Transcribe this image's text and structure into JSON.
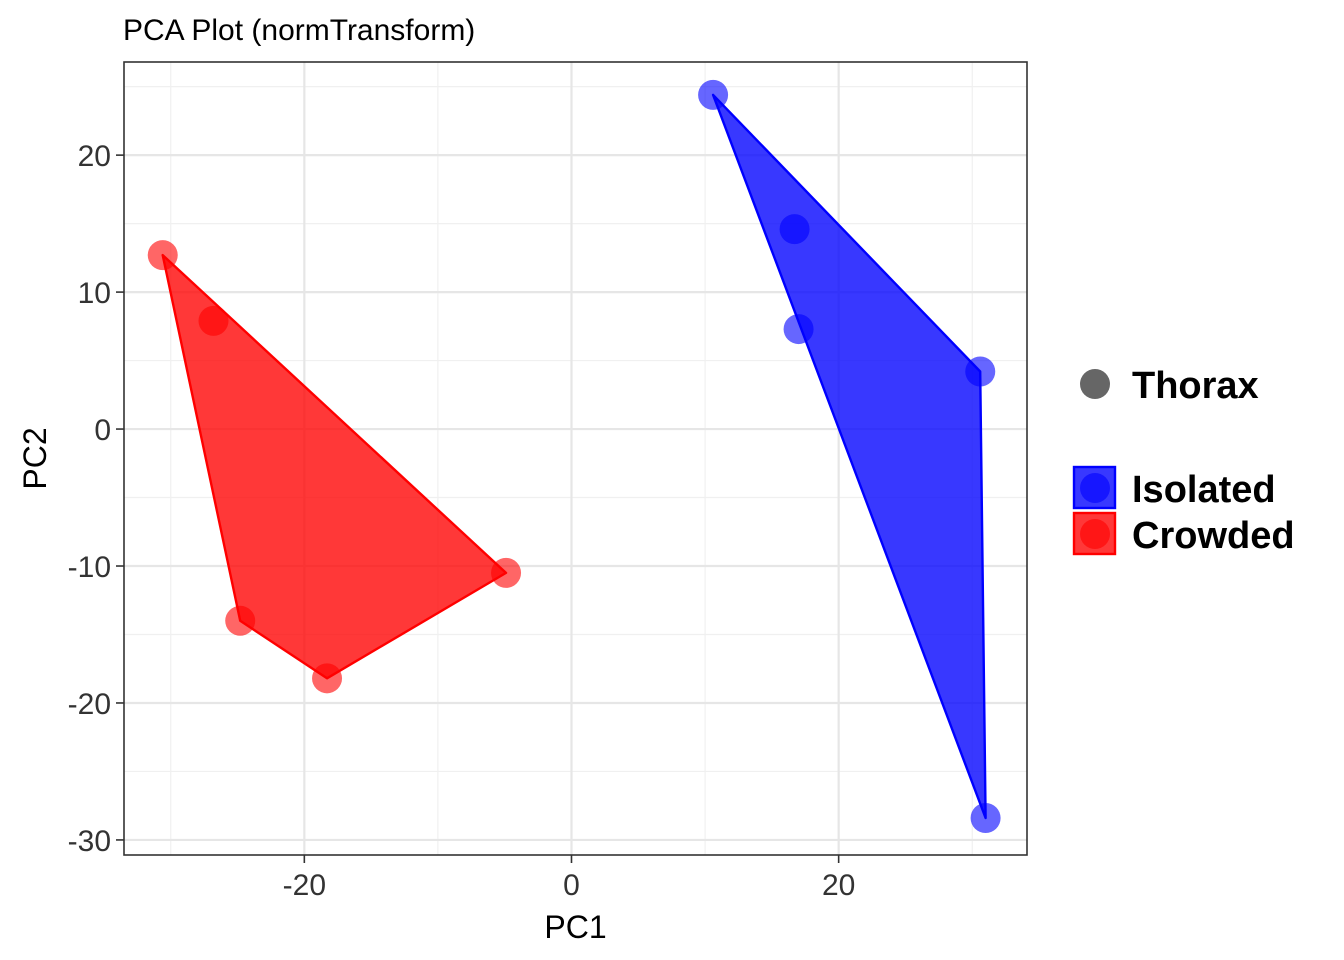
{
  "chart_data": {
    "type": "scatter",
    "title": "PCA Plot (normTransform)",
    "xlabel": "PC1",
    "ylabel": "PC2",
    "xlim": [
      -33.5,
      34.1
    ],
    "ylim": [
      -31.1,
      26.8
    ],
    "x_ticks": [
      -20,
      0,
      20
    ],
    "y_ticks": [
      20,
      10,
      0,
      -10,
      -20,
      -30
    ],
    "x_tick_labels": [
      "-20",
      "0",
      "20"
    ],
    "y_tick_labels": [
      "20",
      "10",
      "0",
      "-10",
      "-20",
      "-30"
    ],
    "grid": true,
    "legend_position": "right",
    "shape_legend": [
      {
        "label": "Thorax",
        "color": "#666666"
      }
    ],
    "series": [
      {
        "name": "Isolated",
        "color": "#0000ff",
        "points": [
          {
            "x": 10.6,
            "y": 24.4
          },
          {
            "x": 16.7,
            "y": 14.6
          },
          {
            "x": 17.0,
            "y": 7.3
          },
          {
            "x": 30.6,
            "y": 4.2
          },
          {
            "x": 31.0,
            "y": -28.4
          }
        ],
        "hull": [
          {
            "x": 10.6,
            "y": 24.4
          },
          {
            "x": 30.6,
            "y": 4.2
          },
          {
            "x": 31.0,
            "y": -28.4
          }
        ]
      },
      {
        "name": "Crowded",
        "color": "#ff0000",
        "points": [
          {
            "x": -30.6,
            "y": 12.7
          },
          {
            "x": -26.8,
            "y": 7.9
          },
          {
            "x": -4.9,
            "y": -10.5
          },
          {
            "x": -24.8,
            "y": -14.0
          },
          {
            "x": -18.3,
            "y": -18.2
          }
        ],
        "hull": [
          {
            "x": -30.6,
            "y": 12.7
          },
          {
            "x": -4.9,
            "y": -10.5
          },
          {
            "x": -18.3,
            "y": -18.2
          },
          {
            "x": -24.8,
            "y": -14.0
          }
        ]
      }
    ]
  }
}
